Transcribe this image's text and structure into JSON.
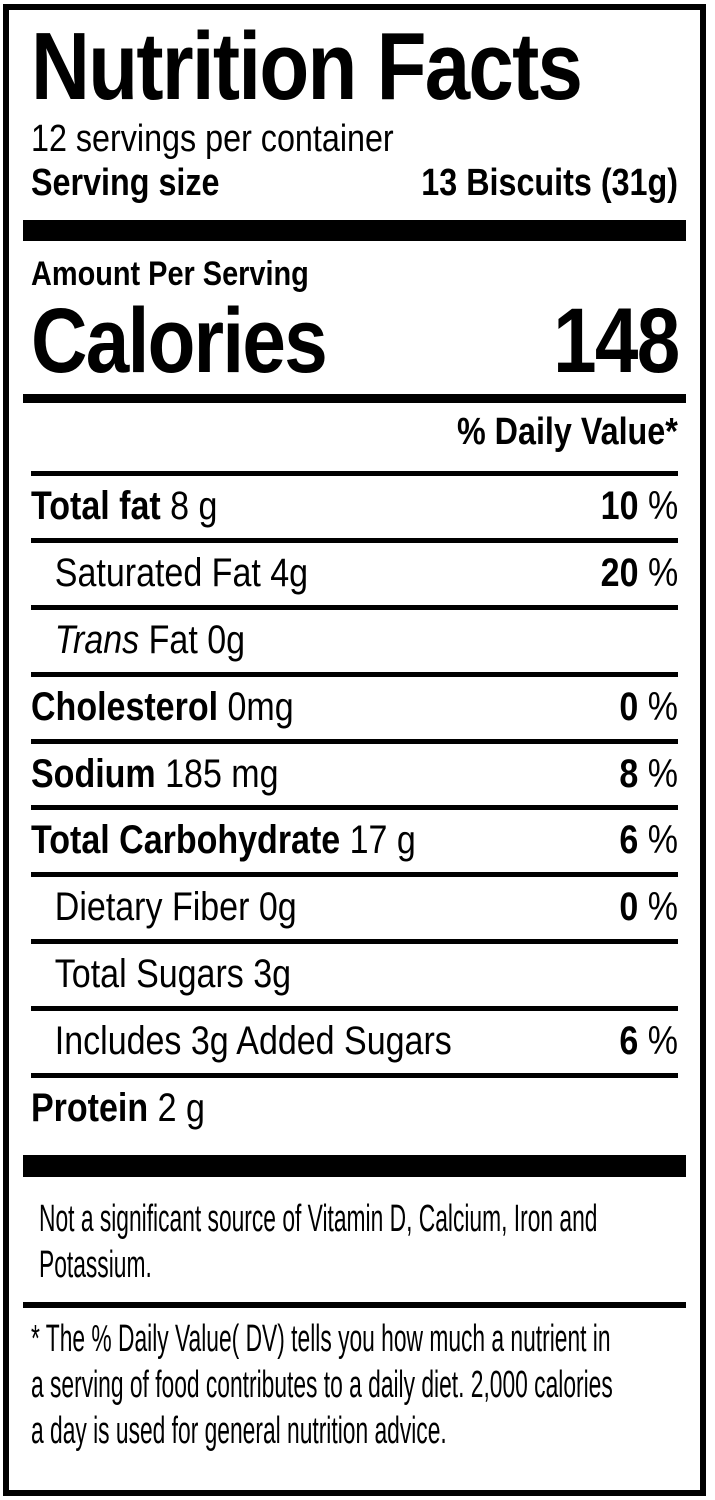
{
  "label": {
    "title": "Nutrition Facts",
    "servings_per_container": "12 servings per container",
    "serving_size_label": "Serving size",
    "serving_size_value": "13 Biscuits (31g)",
    "amount_per_serving": "Amount Per Serving",
    "calories_label": "Calories",
    "calories_value": "148",
    "daily_value_header": "% Daily Value*",
    "percent_sign": "%",
    "nutrients": [
      {
        "bold": "Total fat",
        "rest": "8 g",
        "dv": "10"
      },
      {
        "rest": "Saturated Fat 4g",
        "dv": "20"
      },
      {
        "italic": "Trans",
        "rest": "Fat 0g"
      },
      {
        "bold": "Cholesterol",
        "rest": "0mg",
        "dv": "0"
      },
      {
        "bold": "Sodium",
        "rest": "185 mg",
        "dv": "8"
      },
      {
        "bold": "Total Carbohydrate",
        "rest": "17 g",
        "dv": "6"
      },
      {
        "rest": "Dietary Fiber 0g",
        "dv": "0"
      },
      {
        "rest": "Total Sugars 3g"
      },
      {
        "rest": "Includes 3g Added Sugars",
        "dv": "6"
      },
      {
        "bold": "Protein",
        "rest": "2 g"
      }
    ],
    "not_significant_lines": [
      "Not a significant source of Vitamin D, Calcium, Iron and",
      "Potassium."
    ],
    "footnote_lines": [
      "* The % Daily Value( DV) tells you how much a nutrient in",
      "a serving of food contributes to a daily diet. 2,000 calories",
      "a day is used for general nutrition advice."
    ],
    "colors": {
      "text": "#000000",
      "background": "#ffffff",
      "border": "#000000"
    }
  }
}
